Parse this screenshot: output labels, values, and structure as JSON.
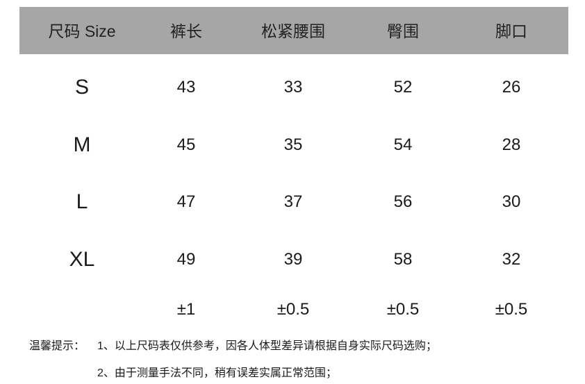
{
  "table": {
    "header": [
      "尺码 Size",
      "裤长",
      "松紧腰围",
      "臀围",
      "脚口"
    ],
    "rows": [
      [
        "S",
        43,
        33,
        52,
        26
      ],
      [
        "M",
        45,
        35,
        54,
        28
      ],
      [
        "L",
        47,
        37,
        56,
        30
      ],
      [
        "XL",
        49,
        39,
        58,
        32
      ]
    ],
    "tolerance": [
      "±1",
      "±0.5",
      "±0.5",
      "±0.5"
    ]
  },
  "notes": {
    "label": "温馨提示：",
    "items": [
      "1、以上尺码表仅供参考，因各人体型差异请根据自身实际尺码选购；",
      "2、由于测量手法不同，稍有误差实属正常范围；"
    ]
  }
}
